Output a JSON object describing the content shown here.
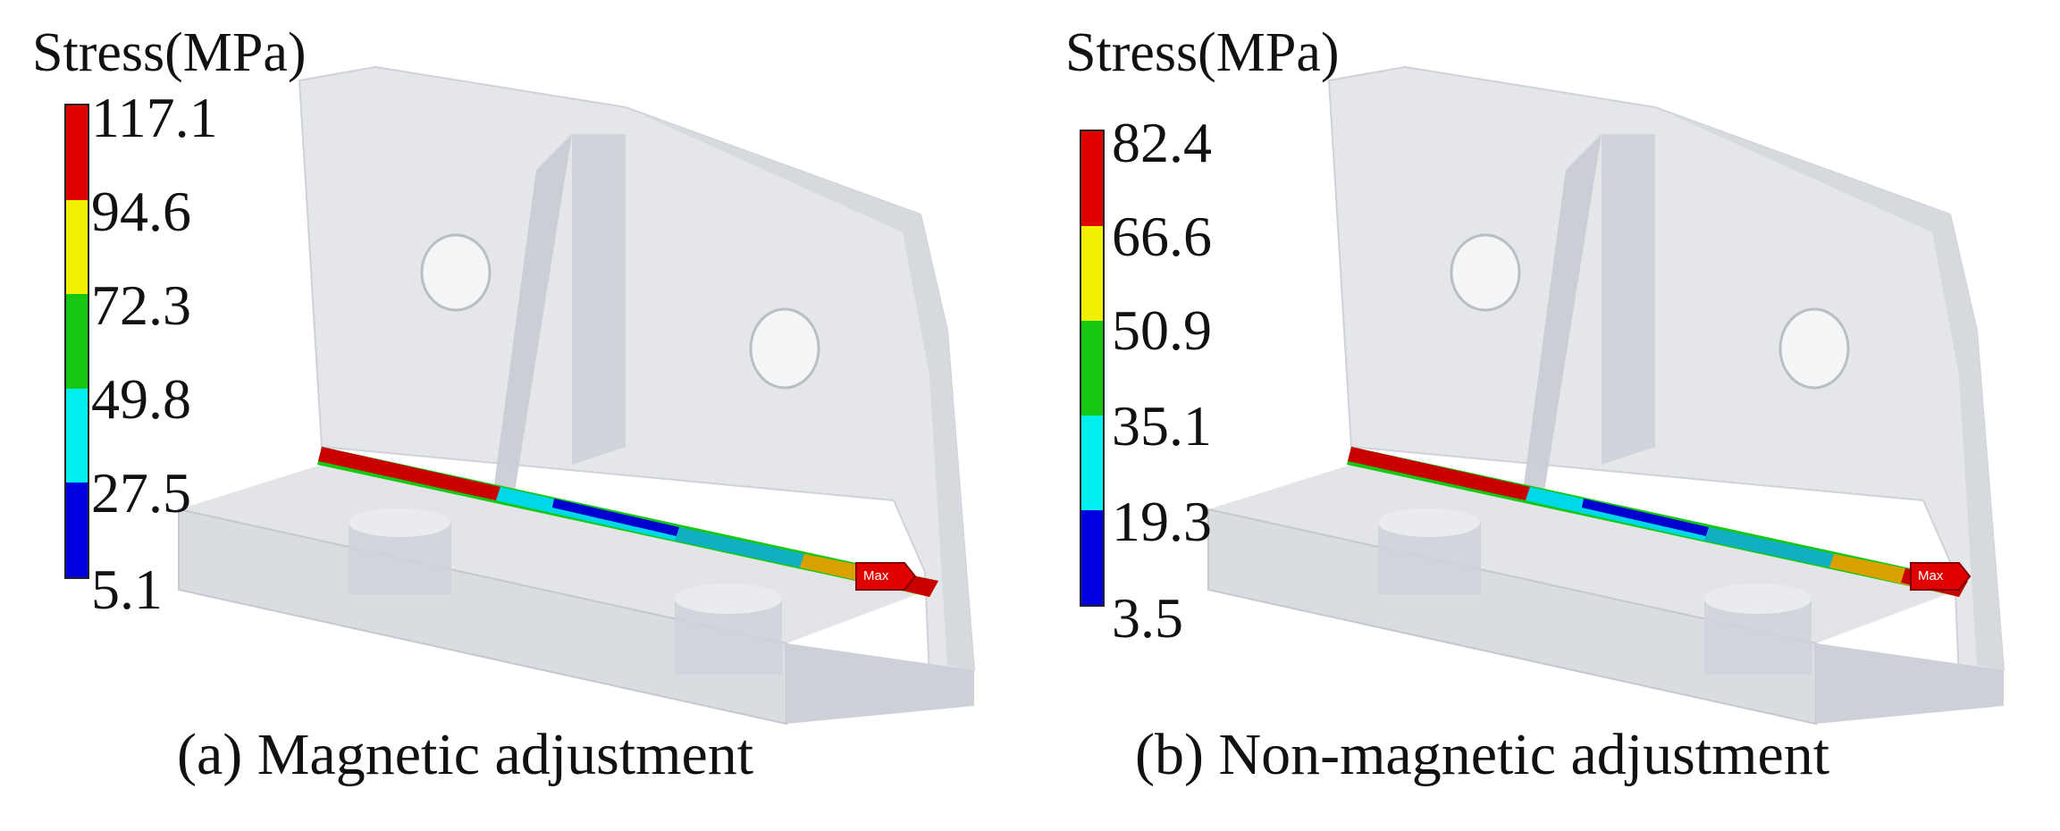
{
  "panels": [
    {
      "legend_title": "Stress(MPa)",
      "ticks": [
        "117.1",
        "94.6",
        "72.3",
        "49.8",
        "27.5",
        "5.1"
      ],
      "max_label": "Max",
      "caption": "(a) Magnetic adjustment"
    },
    {
      "legend_title": "Stress(MPa)",
      "ticks": [
        "82.4",
        "66.6",
        "50.9",
        "35.1",
        "19.3",
        "3.5"
      ],
      "max_label": "Max",
      "caption": "(b) Non-magnetic adjustment"
    }
  ],
  "colors": {
    "band_red": "#e00000",
    "band_yellow": "#f2f200",
    "band_green": "#14c814",
    "band_cyan": "#00f0f0",
    "band_blue": "#0000e0",
    "part_light": "#e6e8ec",
    "part_mid": "#d2d5db",
    "part_dark": "#c3c6cd"
  }
}
